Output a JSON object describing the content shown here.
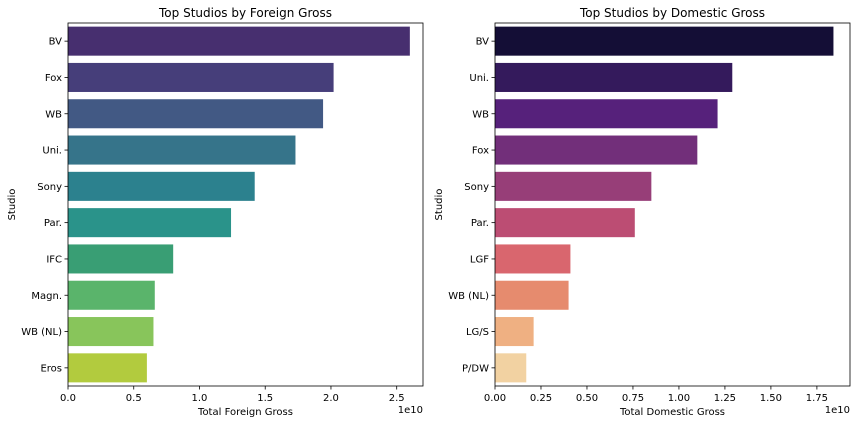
{
  "chart_data": [
    {
      "type": "bar",
      "orientation": "horizontal",
      "title": "Top Studios by Foreign Gross",
      "xlabel": "Total Foreign Gross",
      "ylabel": "Studio",
      "offset_text": "1e10",
      "xlim": [
        0,
        2.7
      ],
      "xticks": [
        "0.0",
        "0.5",
        "1.0",
        "1.5",
        "2.0",
        "2.5"
      ],
      "tick_values": [
        0,
        0.5,
        1.0,
        1.5,
        2.0,
        2.5
      ],
      "categories": [
        "BV",
        "Fox",
        "WB",
        "Uni.",
        "Sony",
        "Par.",
        "IFC",
        "Magn.",
        "WB (NL)",
        "Eros"
      ],
      "values": [
        2.6,
        2.02,
        1.94,
        1.73,
        1.42,
        1.24,
        0.8,
        0.66,
        0.65,
        0.6
      ],
      "colors": [
        "#472f6f",
        "#463e7a",
        "#425984",
        "#36748a",
        "#2c818e",
        "#2a938a",
        "#399e74",
        "#5ab46b",
        "#88c55b",
        "#b2cb3e"
      ]
    },
    {
      "type": "bar",
      "orientation": "horizontal",
      "title": "Top Studios by Domestic Gross",
      "xlabel": "Total Domestic Gross",
      "ylabel": "Studio",
      "offset_text": "1e10",
      "xlim": [
        0,
        1.93
      ],
      "xticks": [
        "0.00",
        "0.25",
        "0.50",
        "0.75",
        "1.00",
        "1.25",
        "1.50",
        "1.75"
      ],
      "tick_values": [
        0,
        0.25,
        0.5,
        0.75,
        1.0,
        1.25,
        1.5,
        1.75
      ],
      "categories": [
        "BV",
        "Uni.",
        "WB",
        "Fox",
        "Sony",
        "Par.",
        "LGF",
        "WB (NL)",
        "LG/S",
        "P/DW"
      ],
      "values": [
        1.84,
        1.29,
        1.21,
        1.1,
        0.85,
        0.76,
        0.41,
        0.4,
        0.21,
        0.17
      ],
      "colors": [
        "#140e36",
        "#341a5c",
        "#56217b",
        "#722f7a",
        "#973e78",
        "#bc4d73",
        "#d9666e",
        "#e68b6e",
        "#efb082",
        "#f2d2a2"
      ]
    }
  ]
}
